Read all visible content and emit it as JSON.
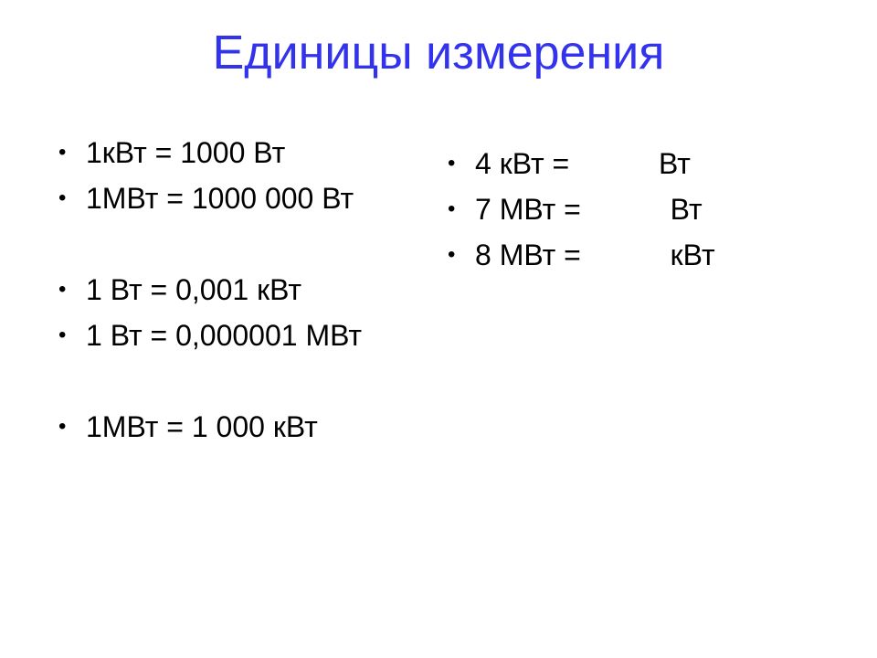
{
  "title": {
    "text": "Единицы измерения",
    "color": "#3333ee",
    "fontsize": 52,
    "font_weight": "normal"
  },
  "body": {
    "text_color": "#000000",
    "fontsize": 32,
    "line_height": 50,
    "bullet_char": "•",
    "bullet_color": "#000000",
    "bullet_fontsize": 24,
    "bullet_width": 30,
    "blank_gap_height": 50
  },
  "left_items": [
    "1кВт = 1000 Вт",
    "1МВт = 1000 000 Вт",
    "",
    "1 Вт = 0,001 кВт",
    "1 Вт = 0,000001 МВт",
    "",
    "1МВт = 1 000 кВт"
  ],
  "right_items": [
    "4 кВт =           Вт",
    "7 МВт =           Вт",
    "8 МВт =           кВт"
  ],
  "background_color": "#ffffff"
}
